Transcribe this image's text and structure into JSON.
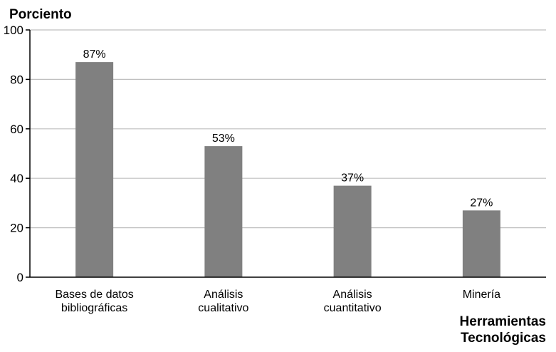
{
  "chart_data": {
    "type": "bar",
    "title": "",
    "ylabel": "Porciento",
    "xlabel": [
      "Herramientas",
      "Tecnológicas"
    ],
    "categories": [
      [
        "Bases de datos",
        "bibliográficas"
      ],
      [
        "Análisis",
        "cualitativo"
      ],
      [
        "Análisis",
        "cuantitativo"
      ],
      [
        "Minería"
      ]
    ],
    "values": [
      87,
      53,
      37,
      27
    ],
    "data_labels": [
      "87%",
      "53%",
      "37%",
      "27%"
    ],
    "ylim": [
      0,
      100
    ],
    "yticks": [
      "0",
      "20",
      "40",
      "60",
      "80",
      "100"
    ],
    "grid": true,
    "colors": {
      "bar": "#808080",
      "grid": "#bfbfbf",
      "axis": "#000000"
    }
  }
}
